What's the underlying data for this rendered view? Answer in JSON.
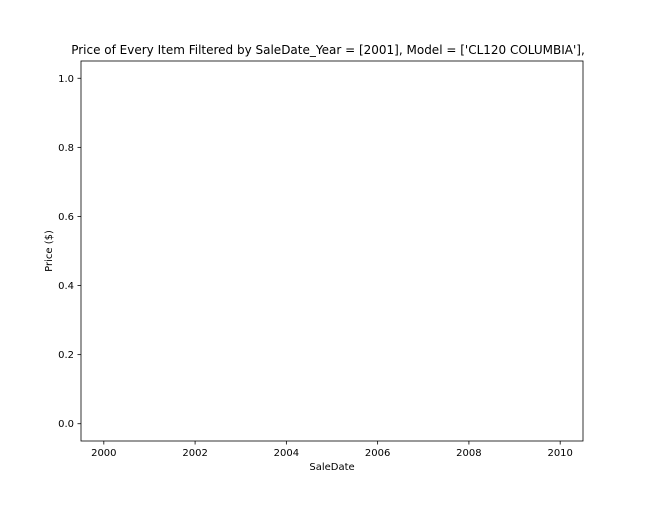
{
  "chart_data": {
    "type": "scatter",
    "title": "Price of Every Item Filtered by SaleDate_Year = [2001], Model = ['CL120 COLUMBIA'],",
    "xlabel": "SaleDate",
    "ylabel": "Price ($)",
    "xlim": [
      1999.5,
      2010.5
    ],
    "ylim": [
      -0.05,
      1.05
    ],
    "xticks": [
      2000,
      2002,
      2004,
      2006,
      2008,
      2010
    ],
    "xtick_labels": [
      "2000",
      "2002",
      "2004",
      "2006",
      "2008",
      "2010"
    ],
    "yticks": [
      0.0,
      0.2,
      0.4,
      0.6,
      0.8,
      1.0
    ],
    "ytick_labels": [
      "0.0",
      "0.2",
      "0.4",
      "0.6",
      "0.8",
      "1.0"
    ],
    "grid": false,
    "series": [
      {
        "x": [],
        "y": []
      }
    ]
  }
}
